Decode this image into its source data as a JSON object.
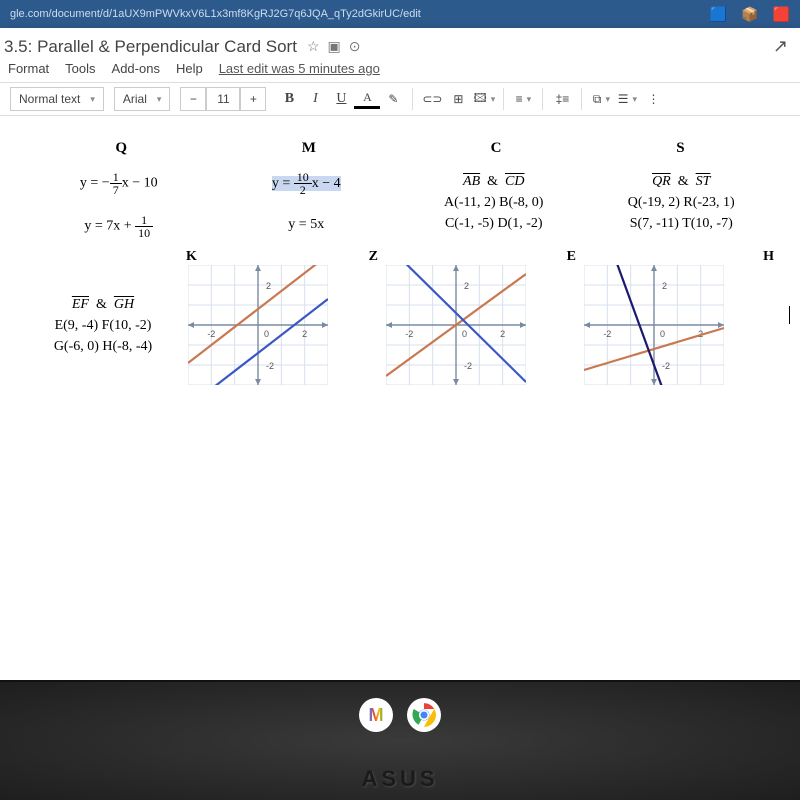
{
  "browser": {
    "url": "gle.com/document/d/1aUX9mPWVkxV6L1x3mf8KgRJ2G7q6JQA_qTy2dGkirUC/edit"
  },
  "doc": {
    "title": "3.5: Parallel & Perpendicular Card Sort",
    "last_edit": "Last edit was 5 minutes ago"
  },
  "menu": {
    "format": "Format",
    "tools": "Tools",
    "addons": "Add-ons",
    "help": "Help"
  },
  "toolbar": {
    "style": "Normal text",
    "font": "Arial",
    "size": "11",
    "bold": "B",
    "italic": "I",
    "underline": "U",
    "textA": "A"
  },
  "labels": {
    "Q": "Q",
    "M": "M",
    "C": "C",
    "S": "S",
    "K": "K",
    "Z": "Z",
    "E": "E",
    "H": "H"
  },
  "eq": {
    "q1_pre": "y = −",
    "q1_n": "1",
    "q1_d": "7",
    "q1_post": "x − 10",
    "q2_pre": "y = 7x + ",
    "q2_n": "1",
    "q2_d": "10",
    "m1_pre": "y = ",
    "m1_n": "10",
    "m1_d": "2",
    "m1_post": "x − 4",
    "m2": "y = 5x"
  },
  "cardC": {
    "header": "AB  &  CD",
    "line1": "A(-11, 2)  B(-8, 0)",
    "line2": "C(-1, -5)  D(1, -2)"
  },
  "cardS": {
    "header": "QR  &  ST",
    "line1": "Q(-19, 2)  R(-23, 1)",
    "line2": "S(7, -11)  T(10, -7)"
  },
  "cardEFGH": {
    "header": "EF  &  GH",
    "line1": "E(9, -4)  F(10, -2)",
    "line2": "G(-6, 0)  H(-8, -4)"
  },
  "graphK": {
    "grid_color": "#d6e0ee",
    "axis_color": "#7a8aa3",
    "line1_color": "#c97850",
    "line2_color": "#3a57c4",
    "range": 3,
    "line1": {
      "m": 0.9,
      "b": 0.8
    },
    "line2": {
      "m": 0.9,
      "b": -1.4
    }
  },
  "graphZ": {
    "grid_color": "#d6e0ee",
    "axis_color": "#7a8aa3",
    "line1_color": "#c97850",
    "line2_color": "#3a57c4",
    "range": 3,
    "line1": {
      "m": 0.85,
      "b": 0
    },
    "line2": {
      "m": -1.15,
      "b": 0.6
    }
  },
  "graphE": {
    "grid_color": "#d6e0ee",
    "axis_color": "#7a8aa3",
    "line1_color": "#c97850",
    "line2_color": "#1a1a6e",
    "range": 3,
    "line1": {
      "m": 0.35,
      "b": -1.2
    },
    "line2": {
      "m": -3.2,
      "b": -2
    }
  },
  "brand": "ASUS"
}
